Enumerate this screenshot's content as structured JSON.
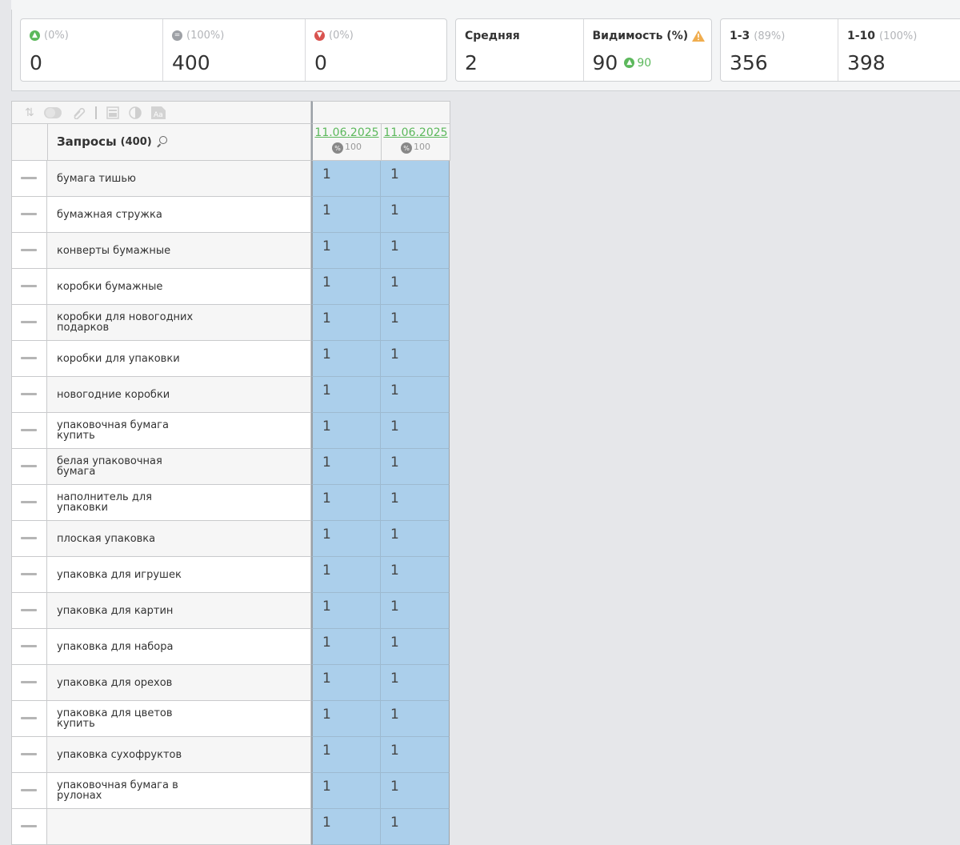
{
  "stats": {
    "up": {
      "pct": "(0%)",
      "value": "0"
    },
    "same": {
      "pct": "(100%)",
      "value": "400"
    },
    "down": {
      "pct": "(0%)",
      "value": "0"
    },
    "average": {
      "label": "Средняя",
      "value": "2"
    },
    "visibility": {
      "label": "Видимость (%)",
      "value": "90",
      "delta": "90"
    },
    "top3": {
      "label": "1-3",
      "pct": "(89%)",
      "value": "356"
    },
    "top10": {
      "label": "1-10",
      "pct": "(100%)",
      "value": "398"
    }
  },
  "table": {
    "queries_title": "Запросы",
    "queries_count": "(400)",
    "dates": [
      {
        "date": "11.06.2025",
        "pct": "100"
      },
      {
        "date": "11.06.2025",
        "pct": "100"
      }
    ],
    "rows": [
      {
        "query": "бумага тишью",
        "v1": "1",
        "v2": "1"
      },
      {
        "query": "бумажная стружка",
        "v1": "1",
        "v2": "1"
      },
      {
        "query": "конверты бумажные",
        "v1": "1",
        "v2": "1"
      },
      {
        "query": "коробки бумажные",
        "v1": "1",
        "v2": "1"
      },
      {
        "query": "коробки для новогодних подарков",
        "v1": "1",
        "v2": "1"
      },
      {
        "query": "коробки для упаковки",
        "v1": "1",
        "v2": "1"
      },
      {
        "query": "новогодние коробки",
        "v1": "1",
        "v2": "1"
      },
      {
        "query": "упаковочная бумага купить",
        "v1": "1",
        "v2": "1"
      },
      {
        "query": "белая упаковочная бумага",
        "v1": "1",
        "v2": "1"
      },
      {
        "query": "наполнитель для упаковки",
        "v1": "1",
        "v2": "1"
      },
      {
        "query": "плоская упаковка",
        "v1": "1",
        "v2": "1"
      },
      {
        "query": "упаковка для игрушек",
        "v1": "1",
        "v2": "1"
      },
      {
        "query": "упаковка для картин",
        "v1": "1",
        "v2": "1"
      },
      {
        "query": "упаковка для набора",
        "v1": "1",
        "v2": "1"
      },
      {
        "query": "упаковка для орехов",
        "v1": "1",
        "v2": "1"
      },
      {
        "query": "упаковка для цветов купить",
        "v1": "1",
        "v2": "1"
      },
      {
        "query": "упаковка сухофруктов",
        "v1": "1",
        "v2": "1"
      },
      {
        "query": "упаковочная бумага в рулонах",
        "v1": "1",
        "v2": "1"
      },
      {
        "query": "",
        "v1": "1",
        "v2": "1"
      }
    ]
  },
  "icons": [
    "arrow-up-icon",
    "equal-icon",
    "arrow-down-icon",
    "warning-icon",
    "sort-icon",
    "toggle-icon",
    "link-icon",
    "column-icon",
    "contrast-icon",
    "font-icon",
    "search-icon",
    "percent-icon"
  ]
}
